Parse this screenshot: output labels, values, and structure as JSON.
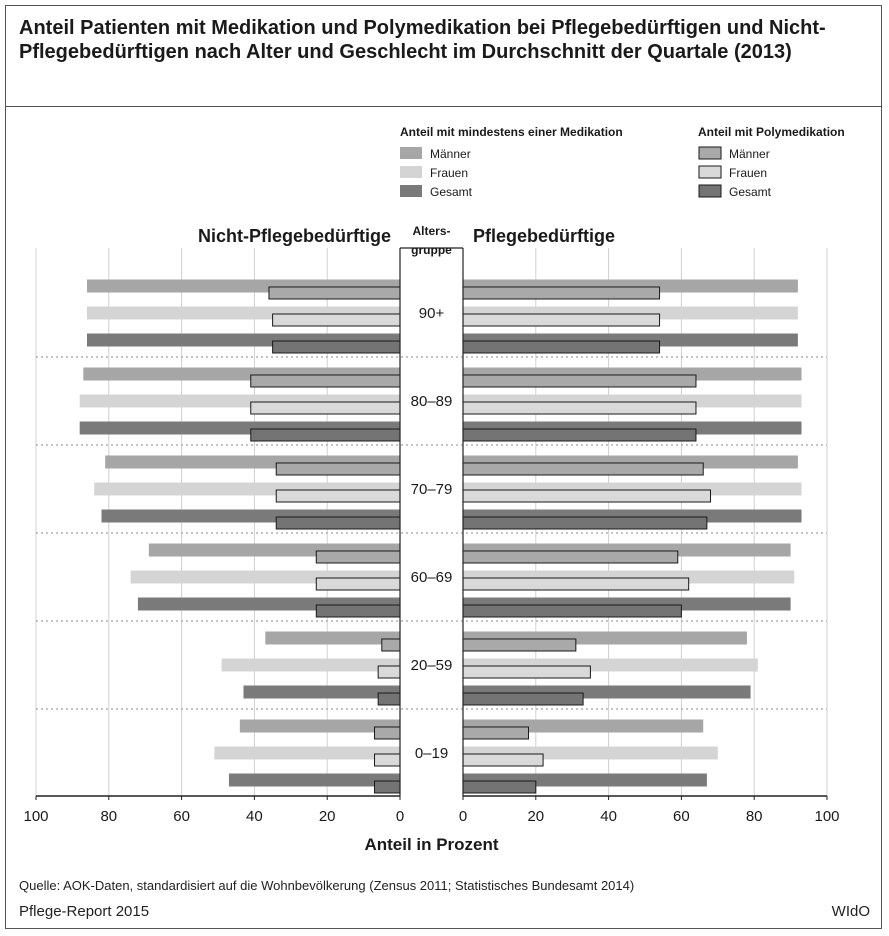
{
  "title": "Anteil Patienten mit Medikation und Polymedikation bei Pflegebedürftigen und Nicht-Pflegebedürftigen nach Alter und Geschlecht im Durchschnitt der Quartale (2013)",
  "source": "Quelle: AOK-Daten, standardisiert auf die Wohnbevölkerung (Zensus 2011; Statistisches Bundesamt 2014)",
  "report": "Pflege-Report 2015",
  "brand": "WIdO",
  "colors": {
    "medication": {
      "Männer": "#a6a6a6",
      "Frauen": "#d4d4d4",
      "Gesamt": "#7a7a7a"
    },
    "poly": {
      "Männer": "#a9a9a9",
      "Frauen": "#d9d9d9",
      "Gesamt": "#747474"
    },
    "poly_stroke": "#1a1a1a"
  },
  "chart_data": {
    "type": "bar",
    "orientation": "horizontal-butterfly",
    "title": "Anteil Patienten mit Medikation und Polymedikation bei Pflegebedürftigen und Nicht-Pflegebedürftigen nach Alter und Geschlecht im Durchschnitt der Quartale (2013)",
    "left_panel_label": "Nicht-Pflegebedürftige",
    "right_panel_label": "Pflegebedürftige",
    "category_header_line1": "Alters-",
    "category_header_line2": "gruppe",
    "xlabel": "Anteil in Prozent",
    "xlim": [
      0,
      100
    ],
    "xticks": [
      "100",
      "80",
      "60",
      "40",
      "20",
      "0",
      "0",
      "20",
      "40",
      "60",
      "80",
      "100"
    ],
    "legend": {
      "placement": "top-right",
      "group1_title": "Anteil mit mindestens einer Medikation",
      "group2_title": "Anteil mit Polymedikation",
      "entries": [
        "Männer",
        "Frauen",
        "Gesamt"
      ]
    },
    "categories": [
      "90+",
      "80–89",
      "70–79",
      "60–69",
      "20–59",
      "0–19"
    ],
    "series": [
      {
        "name": "Männer",
        "medication_nicht": [
          86,
          87,
          81,
          69,
          37,
          44
        ],
        "poly_nicht": [
          36,
          41,
          34,
          23,
          5,
          7
        ],
        "medication_pflege": [
          92,
          93,
          92,
          90,
          78,
          66
        ],
        "poly_pflege": [
          54,
          64,
          66,
          59,
          31,
          18
        ]
      },
      {
        "name": "Frauen",
        "medication_nicht": [
          86,
          88,
          84,
          74,
          49,
          51
        ],
        "poly_nicht": [
          35,
          41,
          34,
          23,
          6,
          7
        ],
        "medication_pflege": [
          92,
          93,
          93,
          91,
          81,
          70
        ],
        "poly_pflege": [
          54,
          64,
          68,
          62,
          35,
          22
        ]
      },
      {
        "name": "Gesamt",
        "medication_nicht": [
          86,
          88,
          82,
          72,
          43,
          47
        ],
        "poly_nicht": [
          35,
          41,
          34,
          23,
          6,
          7
        ],
        "medication_pflege": [
          92,
          93,
          93,
          90,
          79,
          67
        ],
        "poly_pflege": [
          54,
          64,
          67,
          60,
          33,
          20
        ]
      }
    ]
  }
}
